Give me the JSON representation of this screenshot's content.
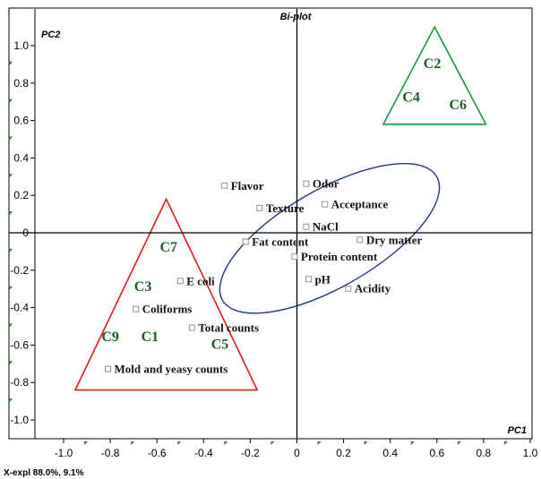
{
  "chart_data": {
    "type": "scatter",
    "title": "Bi-plot",
    "xlabel": "PC1",
    "ylabel": "PC2",
    "footer": "X-expl 88.0%, 9.1%",
    "xlim": [
      -1.1,
      1.1
    ],
    "ylim": [
      -1.1,
      1.12
    ],
    "x_ticks": [
      -1.0,
      -0.8,
      -0.6,
      -0.4,
      -0.2,
      0,
      0.2,
      0.4,
      0.6,
      0.8,
      1.0
    ],
    "x_tick_labels": [
      "-1.0",
      "-0.8",
      "-0.6",
      "-0.4",
      "-0.2",
      "0",
      "0.2",
      "0.4",
      "0.6",
      "0.8",
      "1.0"
    ],
    "y_ticks": [
      -1.0,
      -0.8,
      -0.6,
      -0.4,
      -0.2,
      0,
      0.2,
      0.4,
      0.6,
      0.8,
      1.0
    ],
    "y_tick_labels": [
      "-1.0",
      "-0.8",
      "-0.6",
      "-0.4",
      "-0.2",
      "0",
      "0.2",
      "0.4",
      "0.6",
      "0.8",
      "1.0"
    ],
    "variables": [
      {
        "label": "Flavor",
        "x": -0.31,
        "y": 0.25
      },
      {
        "label": "Odor",
        "x": 0.04,
        "y": 0.26
      },
      {
        "label": "Acceptance",
        "x": 0.12,
        "y": 0.15
      },
      {
        "label": "Texture",
        "x": -0.16,
        "y": 0.13
      },
      {
        "label": "NaCl",
        "x": 0.04,
        "y": 0.03
      },
      {
        "label": "Fat content",
        "x": -0.22,
        "y": -0.05
      },
      {
        "label": "Dry matter",
        "x": 0.27,
        "y": -0.04
      },
      {
        "label": "Protein content",
        "x": -0.01,
        "y": -0.13
      },
      {
        "label": "pH",
        "x": 0.05,
        "y": -0.25
      },
      {
        "label": "Acidity",
        "x": 0.22,
        "y": -0.3
      },
      {
        "label": "E coli",
        "x": -0.5,
        "y": -0.26
      },
      {
        "label": "Coliforms",
        "x": -0.69,
        "y": -0.41
      },
      {
        "label": "Total counts",
        "x": -0.45,
        "y": -0.51
      },
      {
        "label": "Mold and yeasy counts",
        "x": -0.81,
        "y": -0.73
      }
    ],
    "samples": [
      {
        "label": "C2",
        "x": 0.58,
        "y": 0.88,
        "group": "green"
      },
      {
        "label": "C4",
        "x": 0.49,
        "y": 0.7,
        "group": "green"
      },
      {
        "label": "C6",
        "x": 0.69,
        "y": 0.66,
        "group": "green"
      },
      {
        "label": "C7",
        "x": -0.55,
        "y": -0.1,
        "group": "red"
      },
      {
        "label": "C3",
        "x": -0.66,
        "y": -0.31,
        "group": "red"
      },
      {
        "label": "C9",
        "x": -0.8,
        "y": -0.58,
        "group": "red"
      },
      {
        "label": "C1",
        "x": -0.63,
        "y": -0.58,
        "group": "red"
      },
      {
        "label": "C5",
        "x": -0.33,
        "y": -0.62,
        "group": "red"
      }
    ],
    "groups": {
      "green": {
        "color": "#1a9641",
        "vertices": [
          [
            0.59,
            1.1
          ],
          [
            0.37,
            0.58
          ],
          [
            0.81,
            0.58
          ]
        ]
      },
      "red": {
        "color": "#e31a1c",
        "vertices": [
          [
            -0.56,
            0.18
          ],
          [
            -0.95,
            -0.84
          ],
          [
            -0.17,
            -0.84
          ]
        ]
      }
    },
    "ellipse": {
      "color": "#1f3a7a",
      "cx": 0.14,
      "cy": -0.03,
      "rx": 0.53,
      "ry": 0.26,
      "angle_deg": -30
    },
    "sample_label_color": "#1b5e20",
    "tick_marker_color": "#1a8a1a",
    "grid": false
  }
}
